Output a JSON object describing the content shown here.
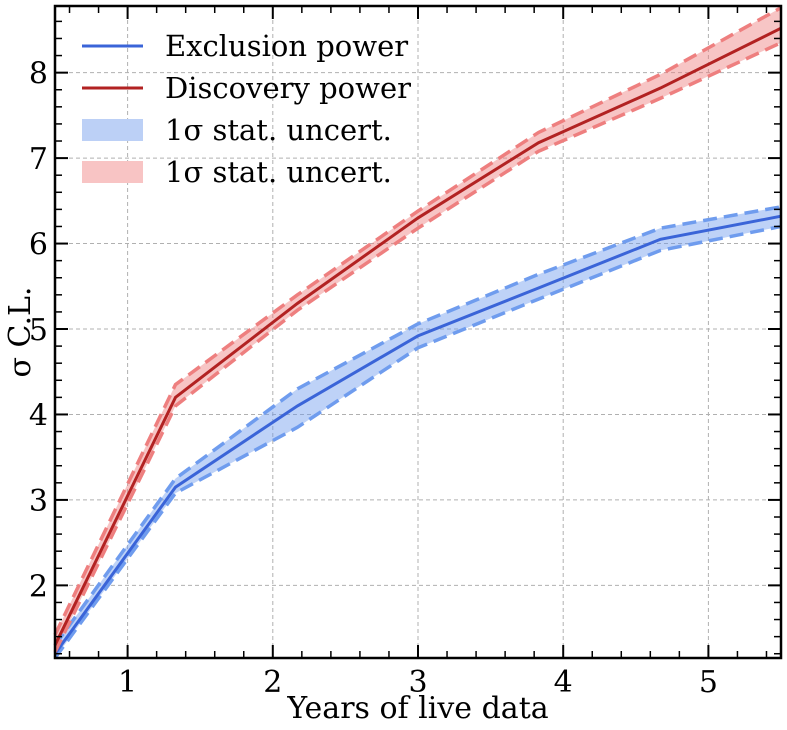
{
  "chart_data": {
    "type": "line",
    "xlabel": "Years of live data",
    "ylabel": "σ C.L.",
    "xlim": [
      0.5,
      5.5
    ],
    "ylim": [
      1.15,
      8.78
    ],
    "xticks": [
      1,
      2,
      3,
      4,
      5
    ],
    "yticks": [
      2,
      3,
      4,
      5,
      6,
      7,
      8
    ],
    "grid": true,
    "legend_position": "top-left",
    "series": [
      {
        "name": "Exclusion power",
        "color": "#3a64d8",
        "band_color": "#6f9cee",
        "x": [
          0.5,
          1.33,
          2.17,
          3.0,
          3.83,
          4.67,
          5.5
        ],
        "y": [
          1.2,
          3.15,
          4.1,
          4.92,
          5.48,
          6.05,
          6.32
        ],
        "lower": [
          1.15,
          3.08,
          3.85,
          4.78,
          5.35,
          5.92,
          6.2
        ],
        "upper": [
          1.3,
          3.25,
          4.3,
          5.06,
          5.64,
          6.18,
          6.43
        ]
      },
      {
        "name": "Discovery power",
        "color": "#b22222",
        "band_color": "#ee7f7f",
        "x": [
          0.5,
          1.33,
          2.17,
          3.0,
          3.83,
          4.67,
          5.5
        ],
        "y": [
          1.3,
          4.2,
          5.3,
          6.3,
          7.18,
          7.82,
          8.52
        ],
        "lower": [
          1.22,
          4.1,
          5.22,
          6.18,
          7.08,
          7.7,
          8.35
        ],
        "upper": [
          1.42,
          4.35,
          5.4,
          6.38,
          7.3,
          7.98,
          8.76
        ]
      }
    ],
    "legend": [
      {
        "label": "Exclusion power",
        "kind": "line",
        "color": "#3a64d8"
      },
      {
        "label": "Discovery power",
        "kind": "line",
        "color": "#b22222"
      },
      {
        "label": "1σ stat. uncert.",
        "kind": "patch",
        "color": "#bcd0f6"
      },
      {
        "label": "1σ stat. uncert.",
        "kind": "patch",
        "color": "#f8c4c4"
      }
    ]
  }
}
